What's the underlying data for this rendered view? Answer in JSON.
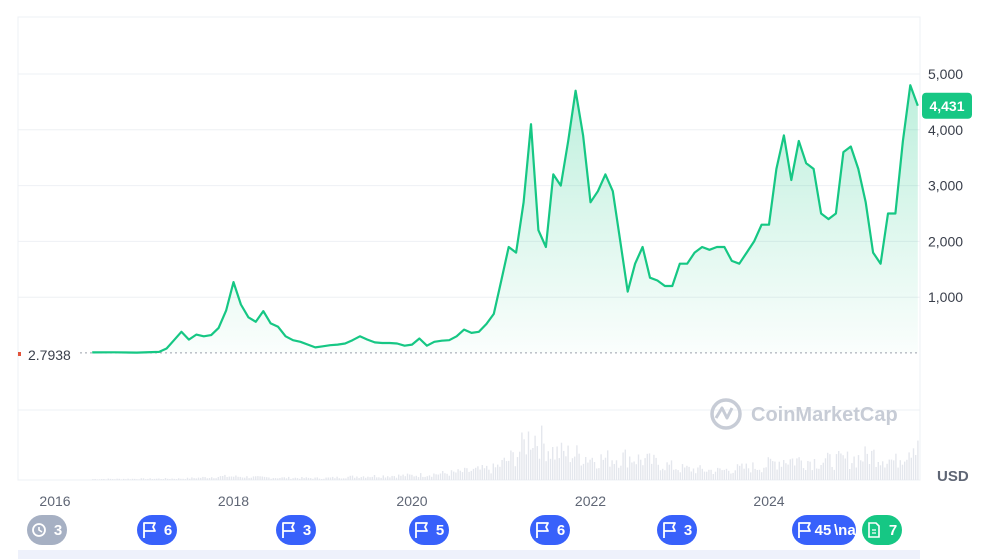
{
  "chart_data": {
    "type": "area",
    "title": "",
    "xlabel": "",
    "ylabel": "",
    "x_tick_labels": [
      "2016",
      "2018",
      "2020",
      "2022",
      "2024"
    ],
    "x_range": [
      "2016-06",
      "2025-05"
    ],
    "y_tick_labels": [
      "1,000",
      "2,000",
      "3,000",
      "4,000",
      "5,000"
    ],
    "y_ticks": [
      1000,
      2000,
      3000,
      4000,
      5000
    ],
    "ylim": [
      0,
      5800
    ],
    "grid": true,
    "baseline_value": 2.7938,
    "baseline_label": "2.7938",
    "current_value": 4431,
    "current_label": "4,431",
    "unit_label": "USD",
    "watermark": "CoinMarketCap",
    "colors": {
      "line": "#16c784",
      "current_badge": "#16c784",
      "event_pill": "#3861fb",
      "note_pill": "#16c784",
      "history_pill": "#a6b0c3"
    },
    "series": [
      {
        "points": [
          [
            "2016-06",
            10
          ],
          [
            "2016-09",
            12
          ],
          [
            "2016-12",
            8
          ],
          [
            "2017-03",
            20
          ],
          [
            "2017-04",
            80
          ],
          [
            "2017-05",
            230
          ],
          [
            "2017-06",
            380
          ],
          [
            "2017-07",
            240
          ],
          [
            "2017-08",
            330
          ],
          [
            "2017-09",
            300
          ],
          [
            "2017-10",
            320
          ],
          [
            "2017-11",
            450
          ],
          [
            "2017-12",
            760
          ],
          [
            "2018-01",
            1270
          ],
          [
            "2018-02",
            870
          ],
          [
            "2018-03",
            640
          ],
          [
            "2018-04",
            560
          ],
          [
            "2018-05",
            750
          ],
          [
            "2018-06",
            530
          ],
          [
            "2018-07",
            470
          ],
          [
            "2018-08",
            300
          ],
          [
            "2018-09",
            230
          ],
          [
            "2018-10",
            200
          ],
          [
            "2018-11",
            150
          ],
          [
            "2018-12",
            100
          ],
          [
            "2019-01",
            120
          ],
          [
            "2019-02",
            140
          ],
          [
            "2019-03",
            150
          ],
          [
            "2019-04",
            170
          ],
          [
            "2019-05",
            230
          ],
          [
            "2019-06",
            300
          ],
          [
            "2019-07",
            240
          ],
          [
            "2019-08",
            190
          ],
          [
            "2019-09",
            180
          ],
          [
            "2019-10",
            180
          ],
          [
            "2019-11",
            170
          ],
          [
            "2019-12",
            130
          ],
          [
            "2020-01",
            150
          ],
          [
            "2020-02",
            260
          ],
          [
            "2020-03",
            130
          ],
          [
            "2020-04",
            200
          ],
          [
            "2020-05",
            220
          ],
          [
            "2020-06",
            230
          ],
          [
            "2020-07",
            300
          ],
          [
            "2020-08",
            420
          ],
          [
            "2020-09",
            360
          ],
          [
            "2020-10",
            380
          ],
          [
            "2020-11",
            520
          ],
          [
            "2020-12",
            700
          ],
          [
            "2021-01",
            1300
          ],
          [
            "2021-02",
            1900
          ],
          [
            "2021-03",
            1800
          ],
          [
            "2021-04",
            2700
          ],
          [
            "2021-05",
            4100
          ],
          [
            "2021-06",
            2200
          ],
          [
            "2021-07",
            1900
          ],
          [
            "2021-08",
            3200
          ],
          [
            "2021-09",
            3000
          ],
          [
            "2021-10",
            3800
          ],
          [
            "2021-11",
            4700
          ],
          [
            "2021-12",
            3900
          ],
          [
            "2022-01",
            2700
          ],
          [
            "2022-02",
            2900
          ],
          [
            "2022-03",
            3200
          ],
          [
            "2022-04",
            2900
          ],
          [
            "2022-05",
            2000
          ],
          [
            "2022-06",
            1100
          ],
          [
            "2022-07",
            1600
          ],
          [
            "2022-08",
            1900
          ],
          [
            "2022-09",
            1350
          ],
          [
            "2022-10",
            1300
          ],
          [
            "2022-11",
            1200
          ],
          [
            "2022-12",
            1200
          ],
          [
            "2023-01",
            1600
          ],
          [
            "2023-02",
            1600
          ],
          [
            "2023-03",
            1800
          ],
          [
            "2023-04",
            1900
          ],
          [
            "2023-05",
            1850
          ],
          [
            "2023-06",
            1900
          ],
          [
            "2023-07",
            1900
          ],
          [
            "2023-08",
            1650
          ],
          [
            "2023-09",
            1600
          ],
          [
            "2023-10",
            1800
          ],
          [
            "2023-11",
            2000
          ],
          [
            "2023-12",
            2300
          ],
          [
            "2024-01",
            2300
          ],
          [
            "2024-02",
            3300
          ],
          [
            "2024-03",
            3900
          ],
          [
            "2024-04",
            3100
          ],
          [
            "2024-05",
            3800
          ],
          [
            "2024-06",
            3400
          ],
          [
            "2024-07",
            3300
          ],
          [
            "2024-08",
            2500
          ],
          [
            "2024-09",
            2400
          ],
          [
            "2024-10",
            2500
          ],
          [
            "2024-11",
            3600
          ],
          [
            "2024-12",
            3700
          ],
          [
            "2025-01",
            3300
          ],
          [
            "2025-02",
            2700
          ],
          [
            "2025-03",
            1800
          ],
          [
            "2025-04",
            1600
          ],
          [
            "2025-05",
            2500
          ],
          [
            "2025-06",
            2500
          ],
          [
            "2025-07",
            3800
          ],
          [
            "2025-08",
            4800
          ],
          [
            "2025-09",
            4431
          ]
        ]
      }
    ],
    "volume": [
      [
        "2016-06",
        0.02
      ],
      [
        "2017-06",
        0.03
      ],
      [
        "2017-12",
        0.08
      ],
      [
        "2018-06",
        0.05
      ],
      [
        "2019-01",
        0.04
      ],
      [
        "2019-06",
        0.08
      ],
      [
        "2020-01",
        0.1
      ],
      [
        "2020-06",
        0.15
      ],
      [
        "2020-12",
        0.25
      ],
      [
        "2021-03",
        0.55
      ],
      [
        "2021-05",
        1.0
      ],
      [
        "2021-08",
        0.6
      ],
      [
        "2021-11",
        0.55
      ],
      [
        "2022-02",
        0.45
      ],
      [
        "2022-06",
        0.5
      ],
      [
        "2022-09",
        0.4
      ],
      [
        "2023-01",
        0.25
      ],
      [
        "2023-06",
        0.2
      ],
      [
        "2023-12",
        0.3
      ],
      [
        "2024-03",
        0.45
      ],
      [
        "2024-08",
        0.4
      ],
      [
        "2024-12",
        0.45
      ],
      [
        "2025-03",
        0.55
      ],
      [
        "2025-06",
        0.4
      ],
      [
        "2025-09",
        0.95
      ]
    ],
    "event_markers": [
      {
        "x": "2016-06",
        "kind": "history",
        "count": "3",
        "icon": "history-icon"
      },
      {
        "x": "2017-06",
        "kind": "event",
        "count": "6",
        "icon": "flag-icon"
      },
      {
        "x": "2019-01",
        "kind": "event",
        "count": "3",
        "icon": "flag-icon"
      },
      {
        "x": "2020-06",
        "kind": "event",
        "count": "5",
        "icon": "flag-icon"
      },
      {
        "x": "2021-12",
        "kind": "event",
        "count": "6",
        "icon": "flag-icon"
      },
      {
        "x": "2023-05",
        "kind": "event",
        "count": "3",
        "icon": "flag-icon"
      },
      {
        "x": "2024-12",
        "kind": "event",
        "count": "45",
        "extra": "\\na",
        "icon": "flag-icon"
      },
      {
        "x": "2025-06",
        "kind": "note",
        "count": "7",
        "icon": "document-icon"
      }
    ]
  }
}
